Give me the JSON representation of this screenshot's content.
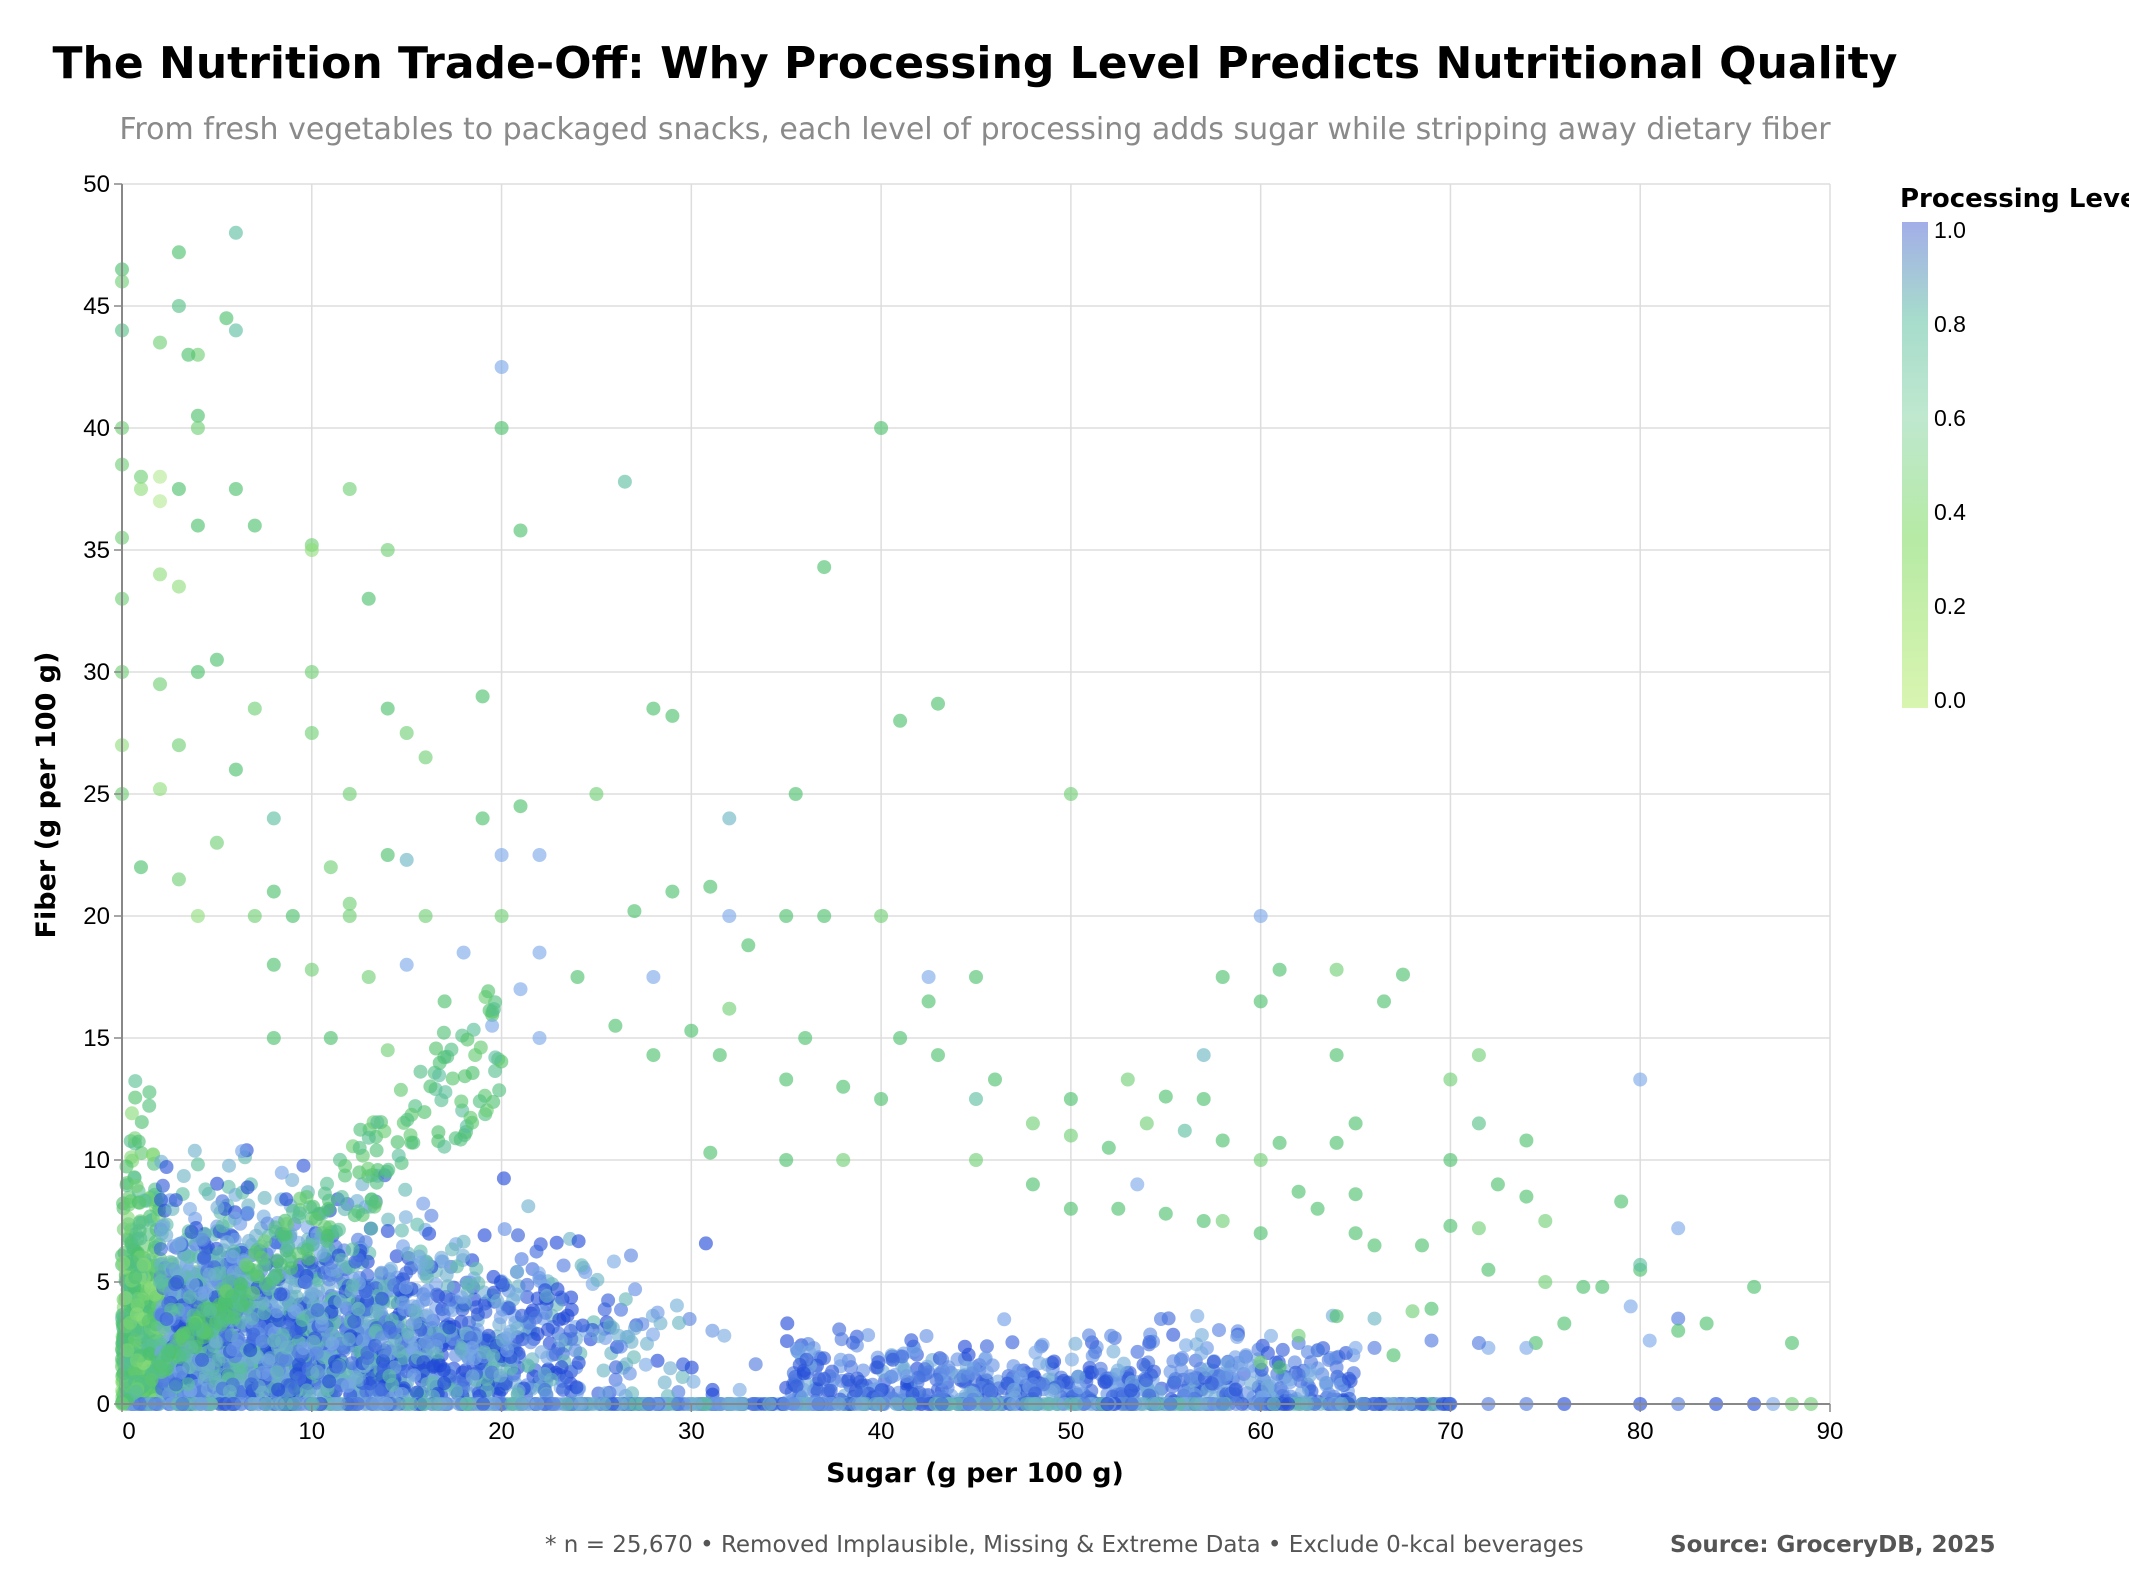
{
  "title": "The Nutrition Trade-Off: Why Processing Level Predicts Nutritional Quality",
  "subtitle": "From fresh vegetables to packaged snacks, each level of processing adds sugar while stripping away dietary fiber",
  "footnote": "* n = 25,670 • Removed Implausible, Missing & Extreme Data • Exclude 0-kcal beverages",
  "source": "Source: GroceryDB, 2025",
  "colors": {
    "scale": [
      "#d9f5b0",
      "#8fdd7a",
      "#4cc06a",
      "#5bbfa0",
      "#7aa8e8",
      "#1f47d6"
    ],
    "grid": "#dddddd",
    "axis": "#888888"
  },
  "chart_data": {
    "type": "scatter",
    "xlabel": "Sugar (g per 100 g)",
    "ylabel": "Fiber (g per 100 g)",
    "xlim": [
      0,
      90
    ],
    "ylim": [
      0,
      50
    ],
    "x_ticks": [
      "0",
      "10",
      "20",
      "30",
      "40",
      "50",
      "60",
      "70",
      "80",
      "90"
    ],
    "y_ticks": [
      "0",
      "5",
      "10",
      "15",
      "20",
      "25",
      "30",
      "35",
      "40",
      "45",
      "50"
    ],
    "grid": true,
    "legend": {
      "title": "Processing Level",
      "position": "top-right",
      "ticks": [
        "1.0",
        "0.8",
        "0.6",
        "0.4",
        "0.2",
        "0.0"
      ],
      "range": [
        0,
        1
      ]
    },
    "points": [
      [
        6,
        48,
        0.6
      ],
      [
        0,
        46.5,
        0.4
      ],
      [
        0,
        46,
        0.3
      ],
      [
        3,
        47.2,
        0.4
      ],
      [
        6,
        44,
        0.6
      ],
      [
        3,
        45,
        0.5
      ],
      [
        5.5,
        44.5,
        0.4
      ],
      [
        4,
        43,
        0.3
      ],
      [
        3.5,
        43,
        0.4
      ],
      [
        0,
        44,
        0.5
      ],
      [
        2,
        43.5,
        0.3
      ],
      [
        4,
        40.5,
        0.4
      ],
      [
        4,
        40,
        0.3
      ],
      [
        0,
        40,
        0.3
      ],
      [
        20,
        42.5,
        0.8
      ],
      [
        20,
        40,
        0.4
      ],
      [
        40,
        40,
        0.4
      ],
      [
        1,
        38,
        0.3
      ],
      [
        1,
        37.5,
        0.2
      ],
      [
        2,
        37,
        0.1
      ],
      [
        0,
        38.5,
        0.3
      ],
      [
        6,
        37.5,
        0.4
      ],
      [
        12,
        37.5,
        0.3
      ],
      [
        26.5,
        37.8,
        0.6
      ],
      [
        2,
        38,
        0.1
      ],
      [
        3,
        37.5,
        0.4
      ],
      [
        0,
        35.5,
        0.3
      ],
      [
        4,
        36,
        0.4
      ],
      [
        7,
        36,
        0.4
      ],
      [
        10,
        35.2,
        0.3
      ],
      [
        10,
        35,
        0.2
      ],
      [
        14,
        35,
        0.3
      ],
      [
        21,
        35.8,
        0.4
      ],
      [
        37,
        34.3,
        0.4
      ],
      [
        2,
        34,
        0.2
      ],
      [
        3,
        33.5,
        0.2
      ],
      [
        0,
        33,
        0.3
      ],
      [
        13,
        33,
        0.4
      ],
      [
        5,
        30.5,
        0.4
      ],
      [
        10,
        30,
        0.3
      ],
      [
        19,
        29,
        0.4
      ],
      [
        0,
        30,
        0.3
      ],
      [
        4,
        30,
        0.4
      ],
      [
        2,
        29.5,
        0.3
      ],
      [
        28,
        28.5,
        0.4
      ],
      [
        29,
        28.2,
        0.4
      ],
      [
        41,
        28,
        0.4
      ],
      [
        43,
        28.7,
        0.4
      ],
      [
        7,
        28.5,
        0.3
      ],
      [
        14,
        28.5,
        0.4
      ],
      [
        10,
        27.5,
        0.3
      ],
      [
        15,
        27.5,
        0.3
      ],
      [
        16,
        26.5,
        0.3
      ],
      [
        0,
        27,
        0.2
      ],
      [
        3,
        27,
        0.3
      ],
      [
        6,
        26,
        0.4
      ],
      [
        0,
        25,
        0.3
      ],
      [
        2,
        25.2,
        0.2
      ],
      [
        12,
        25,
        0.3
      ],
      [
        25,
        25,
        0.3
      ],
      [
        35.5,
        25,
        0.4
      ],
      [
        50,
        25,
        0.3
      ],
      [
        32,
        24,
        0.7
      ],
      [
        21,
        24.5,
        0.4
      ],
      [
        19,
        24,
        0.4
      ],
      [
        8,
        24,
        0.6
      ],
      [
        5,
        23,
        0.3
      ],
      [
        14,
        22.5,
        0.4
      ],
      [
        11,
        22,
        0.3
      ],
      [
        15,
        22.3,
        0.7
      ],
      [
        20,
        22.5,
        0.8
      ],
      [
        22,
        22.5,
        0.8
      ],
      [
        1,
        22,
        0.4
      ],
      [
        3,
        21.5,
        0.3
      ],
      [
        8,
        21,
        0.4
      ],
      [
        12,
        20.5,
        0.3
      ],
      [
        12,
        20,
        0.3
      ],
      [
        20,
        20,
        0.3
      ],
      [
        32,
        20,
        0.8
      ],
      [
        35,
        20,
        0.4
      ],
      [
        37,
        20,
        0.4
      ],
      [
        40,
        20,
        0.3
      ],
      [
        60,
        20,
        0.8
      ],
      [
        27,
        20.2,
        0.4
      ],
      [
        29,
        21,
        0.4
      ],
      [
        31,
        21.2,
        0.4
      ],
      [
        16,
        20,
        0.3
      ],
      [
        4,
        20,
        0.2
      ],
      [
        7,
        20,
        0.3
      ],
      [
        9,
        20,
        0.4
      ],
      [
        18,
        18.5,
        0.8
      ],
      [
        22,
        18.5,
        0.8
      ],
      [
        8,
        18,
        0.4
      ],
      [
        10,
        17.8,
        0.3
      ],
      [
        13,
        17.5,
        0.3
      ],
      [
        15,
        18,
        0.8
      ],
      [
        24,
        17.5,
        0.4
      ],
      [
        28,
        17.5,
        0.8
      ],
      [
        42.5,
        17.5,
        0.8
      ],
      [
        45,
        17.5,
        0.4
      ],
      [
        58,
        17.5,
        0.4
      ],
      [
        61,
        17.8,
        0.4
      ],
      [
        64,
        17.8,
        0.3
      ],
      [
        67.5,
        17.6,
        0.4
      ],
      [
        21,
        17,
        0.8
      ],
      [
        33,
        18.8,
        0.4
      ],
      [
        42.5,
        16.5,
        0.4
      ],
      [
        60,
        16.5,
        0.4
      ],
      [
        66.5,
        16.5,
        0.4
      ],
      [
        17,
        16.5,
        0.4
      ],
      [
        32,
        16.2,
        0.3
      ],
      [
        19.5,
        15.5,
        0.8
      ],
      [
        22,
        15,
        0.8
      ],
      [
        26,
        15.5,
        0.4
      ],
      [
        30,
        15.3,
        0.4
      ],
      [
        36,
        15,
        0.4
      ],
      [
        41,
        15,
        0.4
      ],
      [
        8,
        15,
        0.4
      ],
      [
        11,
        15,
        0.4
      ],
      [
        14,
        14.5,
        0.3
      ],
      [
        28,
        14.3,
        0.4
      ],
      [
        31.5,
        14.3,
        0.4
      ],
      [
        43,
        14.3,
        0.4
      ],
      [
        57,
        14.3,
        0.7
      ],
      [
        64,
        14.3,
        0.4
      ],
      [
        71.5,
        14.3,
        0.3
      ],
      [
        70,
        13.3,
        0.3
      ],
      [
        80,
        13.3,
        0.8
      ],
      [
        53,
        13.3,
        0.3
      ],
      [
        46,
        13.3,
        0.4
      ],
      [
        35,
        13.3,
        0.4
      ],
      [
        38,
        13,
        0.4
      ],
      [
        45,
        12.5,
        0.6
      ],
      [
        40,
        12.5,
        0.4
      ],
      [
        50,
        12.5,
        0.4
      ],
      [
        55,
        12.6,
        0.4
      ],
      [
        57,
        12.5,
        0.4
      ],
      [
        65,
        11.5,
        0.4
      ],
      [
        71.5,
        11.5,
        0.5
      ],
      [
        74,
        10.8,
        0.4
      ],
      [
        48,
        11.5,
        0.3
      ],
      [
        50,
        11,
        0.3
      ],
      [
        54,
        11.5,
        0.3
      ],
      [
        56,
        11.2,
        0.6
      ],
      [
        58,
        10.8,
        0.4
      ],
      [
        61,
        10.7,
        0.4
      ],
      [
        64,
        10.7,
        0.4
      ],
      [
        70,
        10,
        0.4
      ],
      [
        60,
        10,
        0.3
      ],
      [
        45,
        10,
        0.3
      ],
      [
        35,
        10,
        0.4
      ],
      [
        38,
        10,
        0.3
      ],
      [
        31,
        10.3,
        0.4
      ],
      [
        52,
        10.5,
        0.4
      ],
      [
        53.5,
        9,
        0.8
      ],
      [
        48,
        9,
        0.4
      ],
      [
        72.5,
        9,
        0.4
      ],
      [
        74,
        8.5,
        0.4
      ],
      [
        79,
        8.3,
        0.4
      ],
      [
        62,
        8.7,
        0.4
      ],
      [
        65,
        8.6,
        0.4
      ],
      [
        63,
        8,
        0.4
      ],
      [
        50,
        8,
        0.4
      ],
      [
        52.5,
        8,
        0.4
      ],
      [
        55,
        7.8,
        0.4
      ],
      [
        57,
        7.5,
        0.4
      ],
      [
        58,
        7.5,
        0.3
      ],
      [
        60,
        7,
        0.4
      ],
      [
        65,
        7,
        0.4
      ],
      [
        70,
        7.3,
        0.4
      ],
      [
        71.5,
        7.2,
        0.3
      ],
      [
        75,
        7.5,
        0.3
      ],
      [
        82,
        7.2,
        0.8
      ],
      [
        66,
        6.5,
        0.4
      ],
      [
        68.5,
        6.5,
        0.4
      ],
      [
        80,
        5.5,
        0.4
      ],
      [
        80,
        5.7,
        0.6
      ],
      [
        72,
        5.5,
        0.4
      ],
      [
        75,
        5,
        0.3
      ],
      [
        86,
        4.8,
        0.4
      ],
      [
        78,
        4.8,
        0.4
      ],
      [
        77,
        4.8,
        0.4
      ],
      [
        69,
        3.9,
        0.4
      ],
      [
        79.5,
        4,
        0.8
      ],
      [
        82,
        3.5,
        0.9
      ],
      [
        83.5,
        3.3,
        0.4
      ],
      [
        76,
        3.3,
        0.4
      ],
      [
        74.5,
        2.5,
        0.4
      ],
      [
        72,
        2.3,
        0.8
      ],
      [
        74,
        2.3,
        0.8
      ],
      [
        80.5,
        2.6,
        0.8
      ],
      [
        88,
        2.5,
        0.4
      ],
      [
        82,
        3,
        0.4
      ],
      [
        71.5,
        2.5,
        0.9
      ],
      [
        66,
        2.3,
        0.9
      ],
      [
        69,
        2.6,
        0.9
      ],
      [
        62,
        2.5,
        0.9
      ],
      [
        63,
        2.2,
        0.9
      ],
      [
        65,
        2.3,
        0.8
      ],
      [
        67,
        2,
        0.4
      ],
      [
        60,
        1.7,
        0.3
      ],
      [
        61,
        1.5,
        0.4
      ],
      [
        64,
        1.5,
        0.9
      ],
      [
        62,
        1.2,
        0.9
      ],
      [
        66,
        0,
        0.9
      ],
      [
        70,
        0,
        0.9
      ],
      [
        72,
        0,
        0.9
      ],
      [
        74,
        0,
        0.9
      ],
      [
        76,
        0,
        1.0
      ],
      [
        80,
        0,
        1.0
      ],
      [
        82,
        0,
        0.9
      ],
      [
        84,
        0,
        1.0
      ],
      [
        86,
        0,
        1.0
      ],
      [
        87,
        0,
        0.8
      ],
      [
        88,
        0,
        0.3
      ],
      [
        89,
        0,
        0.3
      ],
      [
        62,
        2.8,
        0.3
      ],
      [
        64,
        3.6,
        0.4
      ],
      [
        66,
        3.5,
        0.7
      ],
      [
        68,
        3.8,
        0.3
      ]
    ]
  }
}
